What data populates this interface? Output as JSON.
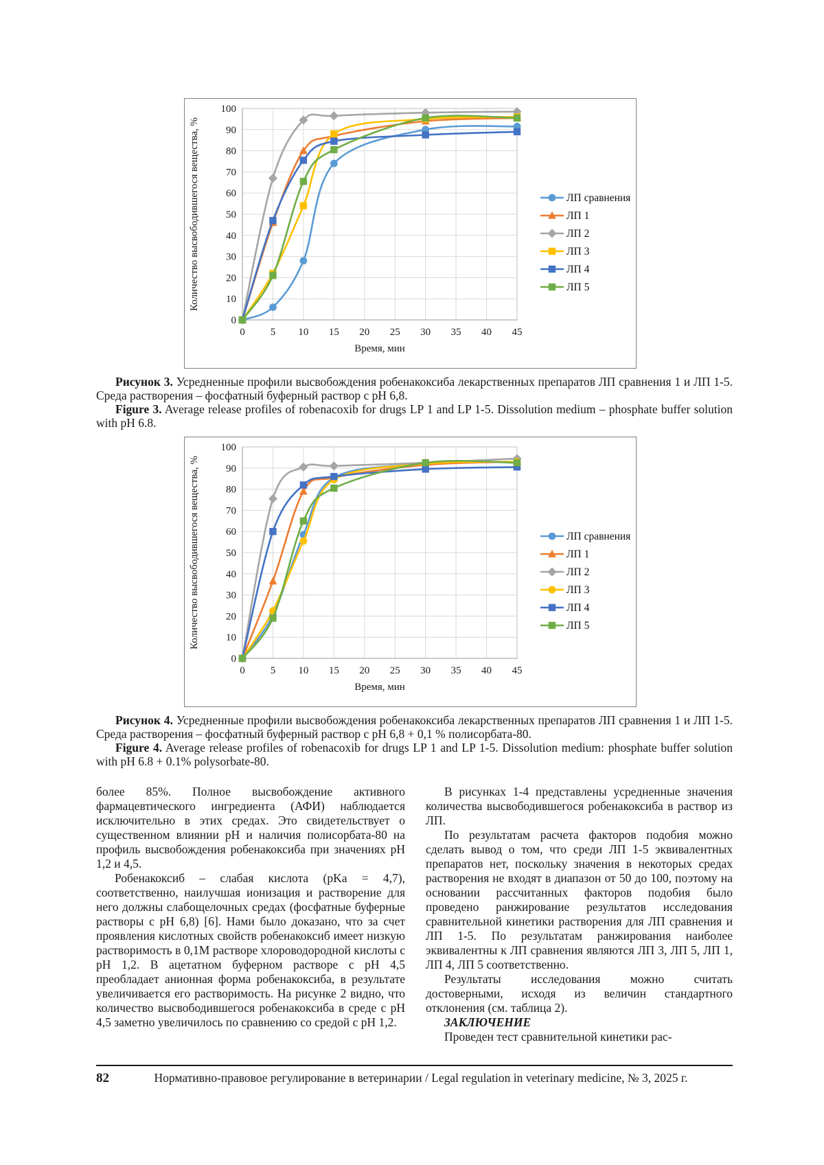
{
  "page": {
    "number": "82",
    "footer_text": "Нормативно-правовое регулирование в ветеринарии / Legal regulation in veterinary medicine, № 3, 2025 г."
  },
  "captions": {
    "fig3_ru_label": "Рисунок 3.",
    "fig3_ru_text": "Усредненные профили высвобождения робенакоксиба лекарственных препаратов ЛП сравнения 1 и ЛП 1-5. Среда растворения – фосфатный буферный раствор с pH 6,8.",
    "fig3_en_label": "Figure 3.",
    "fig3_en_text": "Average release profiles of robenacoxib for drugs LP 1 and LP 1-5. Dissolution medium – phosphate buffer solution with pH 6.8.",
    "fig4_ru_label": "Рисунок 4.",
    "fig4_ru_text": "Усредненные профили высвобождения робенакоксиба лекарственных препаратов ЛП сравнения 1 и ЛП 1-5. Среда растворения – фосфатный буферный раствор с pH 6,8 + 0,1 % полисорбата-80.",
    "fig4_en_label": "Figure 4.",
    "fig4_en_text": "Average release profiles of robenacoxib for drugs LP 1 and LP 1-5. Dissolution medium: phosphate buffer solution with pH 6.8 + 0.1% polysorbate-80."
  },
  "article": {
    "left_p1": "более 85%. Полное высвобождение активного фармацевтического ингредиента (АФИ) наблюдается исключительно в этих средах. Это свидетельствует о существенном влиянии pH и наличия полисорбата-80 на профиль высвобождения робенакоксиба при значениях pH 1,2 и 4,5.",
    "left_p2": "Робенакоксиб – слабая кислота (pKa = 4,7), соответственно, наилучшая ионизация и растворение для него должны слабощелочных средах (фосфатные буферные растворы с pH 6,8) [6]. Нами было доказано, что за счет проявления кислотных свойств робенакоксиб имеет низкую растворимость в 0,1М растворе хлороводородной кислоты с pH 1,2. В ацетатном буферном растворе с pH 4,5 преобладает анионная форма робенакоксиба, в результате увеличивается его растворимость. На рисунке 2 видно, что количество высвободившегося робенакоксиба в среде с pH 4,5 заметно увеличилось по сравнению со средой с pH 1,2.",
    "right_p1": "В рисунках 1-4 представлены усредненные значения количества высвободившегося робенакоксиба в раствор из ЛП.",
    "right_p2": "По результатам расчета факторов подобия можно сделать вывод о том, что среди ЛП 1-5 эквивалентных препаратов нет, поскольку значения в некоторых средах растворения не входят в диапазон от 50 до 100, поэтому на основании рассчитанных факторов подобия было проведено ранжирование результатов исследования сравнительной кинетики растворения для ЛП сравнения и ЛП 1-5. По результатам ранжирования наиболее эквивалентны к ЛП сравнения являются ЛП 3, ЛП 5, ЛП 1, ЛП 4, ЛП 5 соответственно.",
    "right_p3": "Результаты исследования можно считать достоверными, исходя из величин стандартного отклонения (см. таблица 2).",
    "right_heading": "ЗАКЛЮЧЕНИЕ",
    "right_p4": "Проведен тест сравнительной кинетики рас-"
  },
  "chart_data": [
    {
      "type": "line",
      "title": "",
      "xlabel": "Время, мин",
      "ylabel": "Количество высвободившегося вещества, %",
      "x": [
        0,
        5,
        10,
        15,
        30,
        45
      ],
      "xlim": [
        0,
        45
      ],
      "ylim": [
        0,
        100
      ],
      "xtick_step": 5,
      "ytick_step": 10,
      "grid": true,
      "legend_position": "right",
      "series": [
        {
          "name": "ЛП сравнения",
          "color": "#5B9BD5",
          "marker": "circle",
          "values": [
            0,
            6,
            28,
            74,
            90,
            91.5
          ]
        },
        {
          "name": "ЛП 1",
          "color": "#ED7D31",
          "marker": "triangle",
          "values": [
            0,
            46,
            80,
            87,
            94,
            95.5
          ]
        },
        {
          "name": "ЛП 2",
          "color": "#A5A5A5",
          "marker": "diamond",
          "values": [
            0,
            67,
            94.5,
            96.5,
            98,
            98.5
          ]
        },
        {
          "name": "ЛП 3",
          "color": "#FFC000",
          "marker": "square",
          "values": [
            0,
            22,
            54,
            88,
            95,
            96
          ]
        },
        {
          "name": "ЛП 4",
          "color": "#4472C4",
          "marker": "square",
          "values": [
            0,
            47,
            75.5,
            84.5,
            87.5,
            89
          ]
        },
        {
          "name": "ЛП 5",
          "color": "#70AD47",
          "marker": "square",
          "values": [
            0,
            21,
            65.5,
            80.5,
            95.5,
            95.5
          ]
        }
      ]
    },
    {
      "type": "line",
      "title": "",
      "xlabel": "Время, мин",
      "ylabel": "Количество высвободившегося вещества, %",
      "x": [
        0,
        5,
        10,
        15,
        30,
        45
      ],
      "xlim": [
        0,
        45
      ],
      "ylim": [
        0,
        100
      ],
      "xtick_step": 5,
      "ytick_step": 10,
      "grid": true,
      "legend_position": "right",
      "series": [
        {
          "name": "ЛП сравнения",
          "color": "#5B9BD5",
          "marker": "circle",
          "values": [
            0,
            20.5,
            58.5,
            85.5,
            92,
            93
          ]
        },
        {
          "name": "ЛП 1",
          "color": "#ED7D31",
          "marker": "triangle",
          "values": [
            0,
            36.5,
            79,
            85.5,
            91.5,
            93
          ]
        },
        {
          "name": "ЛП 2",
          "color": "#A5A5A5",
          "marker": "diamond",
          "values": [
            0,
            75.5,
            90.5,
            91,
            92.5,
            94.5
          ]
        },
        {
          "name": "ЛП 3",
          "color": "#FFC000",
          "marker": "circle",
          "values": [
            0,
            22.5,
            55.5,
            84.5,
            92,
            93
          ]
        },
        {
          "name": "ЛП 4",
          "color": "#4472C4",
          "marker": "square",
          "values": [
            0,
            60,
            82,
            86,
            89.5,
            90.5
          ]
        },
        {
          "name": "ЛП 5",
          "color": "#70AD47",
          "marker": "square",
          "values": [
            0,
            19,
            65,
            80.5,
            92.5,
            92.5
          ]
        }
      ]
    }
  ]
}
